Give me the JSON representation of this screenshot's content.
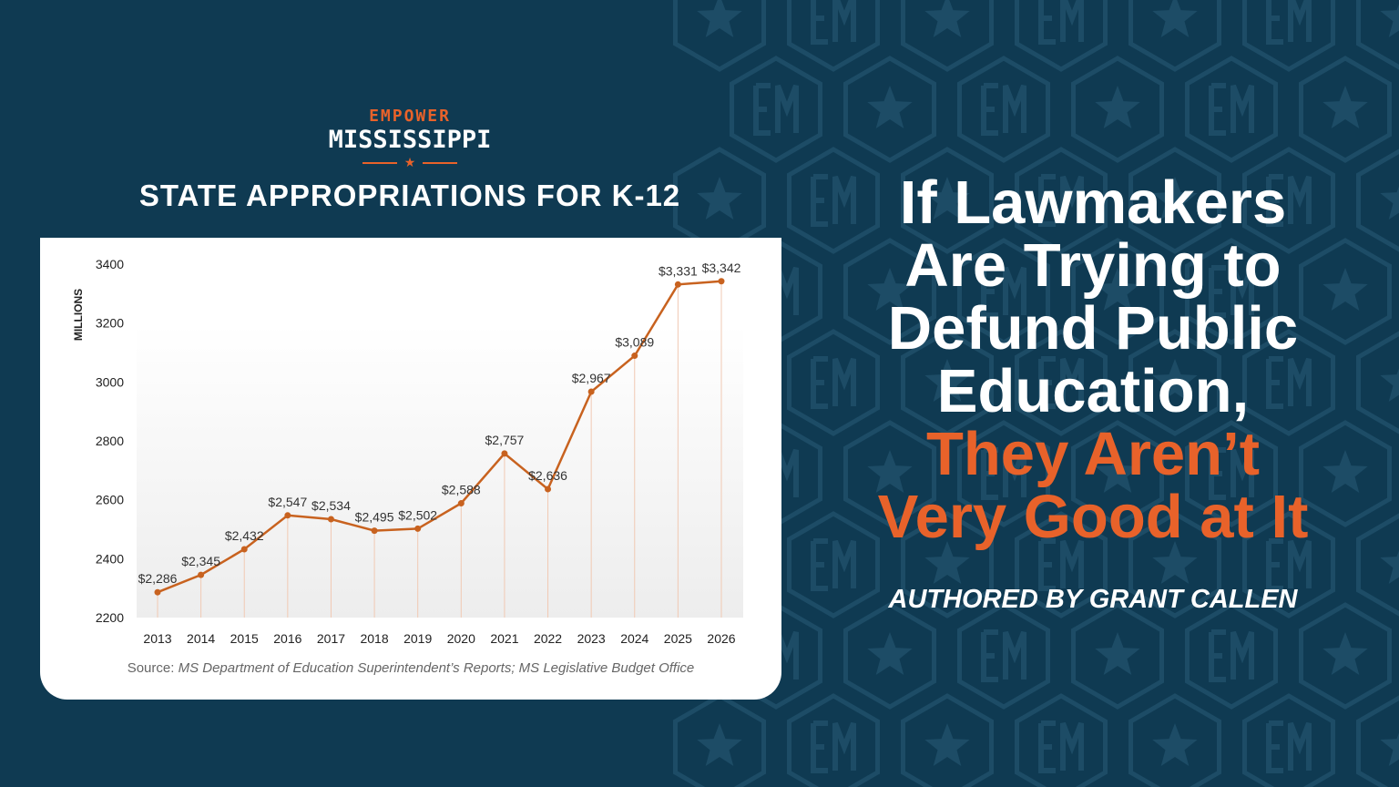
{
  "brand": {
    "logo_top": "EMPOWER",
    "logo_main": "MISSISSIPPI"
  },
  "headline": {
    "line1": "If Lawmakers",
    "line2": "Are Trying to",
    "line3": "Defund Public",
    "line4": "Education,",
    "line5": "They Aren’t",
    "line6": "Very Good at It"
  },
  "byline": "AUTHORED BY GRANT CALLEN",
  "colors": {
    "background": "#0f3a52",
    "accent": "#e8622a",
    "line": "#c8621f"
  },
  "chart_data": {
    "type": "line",
    "title": "STATE APPROPRIATIONS FOR K-12",
    "ylabel": "MILLIONS",
    "xlabel": "",
    "ylim": [
      2200,
      3400
    ],
    "yticks": [
      2200,
      2400,
      2600,
      2800,
      3000,
      3200,
      3400
    ],
    "grid": false,
    "x": [
      "2013",
      "2014",
      "2015",
      "2016",
      "2017",
      "2018",
      "2019",
      "2020",
      "2021",
      "2022",
      "2023",
      "2024",
      "2025",
      "2026"
    ],
    "values": [
      2286,
      2345,
      2432,
      2547,
      2534,
      2495,
      2502,
      2588,
      2757,
      2636,
      2967,
      3089,
      3331,
      3342
    ],
    "data_labels": [
      "$2,286",
      "$2,345",
      "$2,432",
      "$2,547",
      "$2,534",
      "$2,495",
      "$2,502",
      "$2,588",
      "$2,757",
      "$2,636",
      "$2,967",
      "$3,089",
      "$3,331",
      "$3,342"
    ],
    "source_prefix": "Source: ",
    "source": "MS Department of Education Superintendent’s Reports; MS Legislative Budget Office"
  }
}
